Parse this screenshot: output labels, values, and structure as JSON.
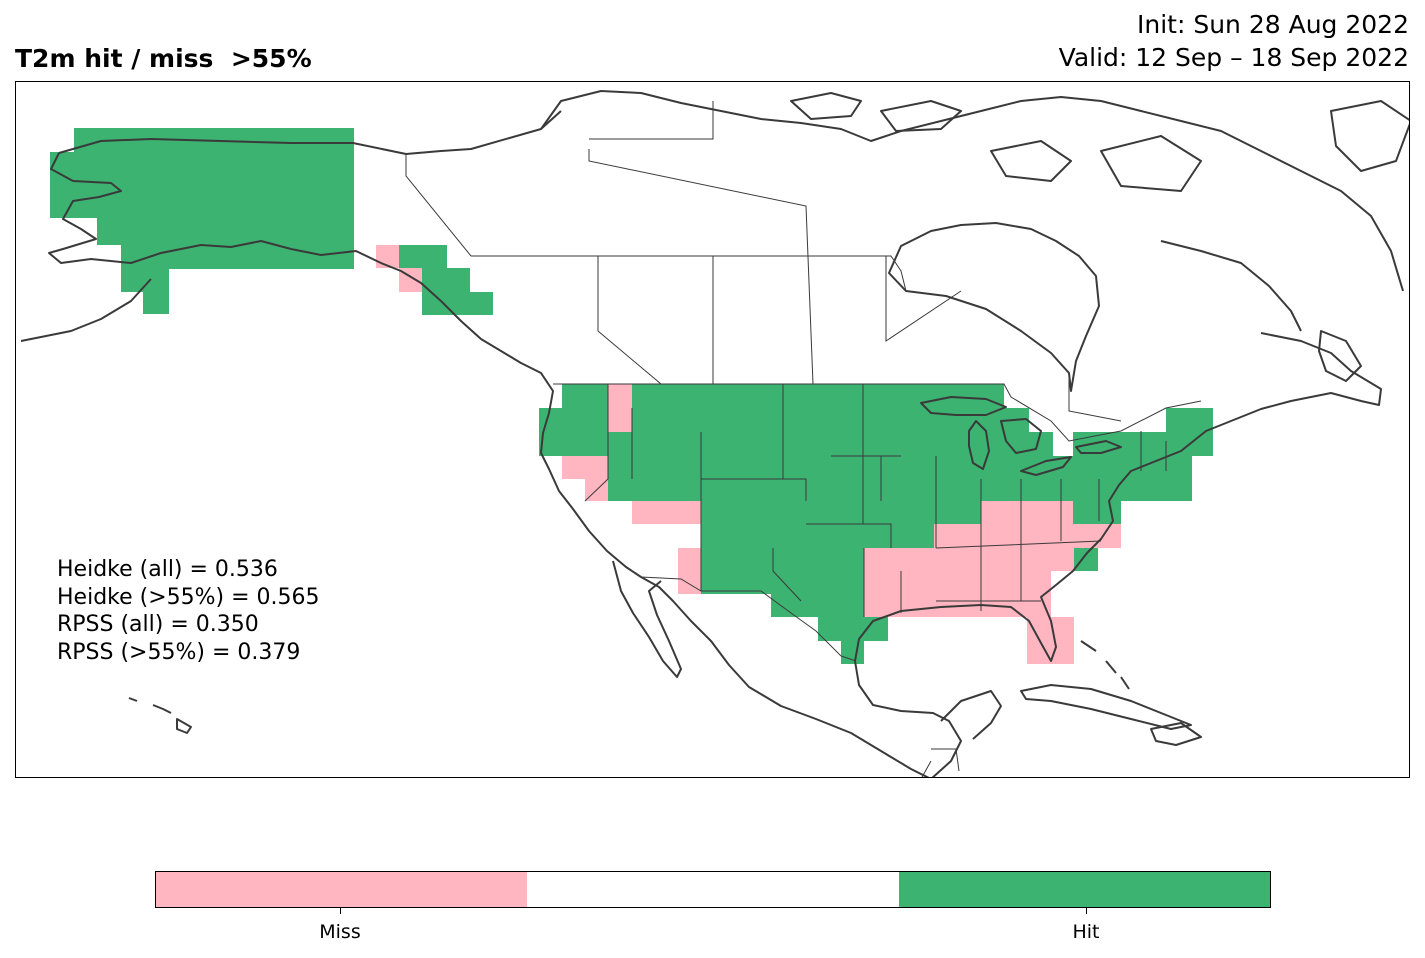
{
  "title": "T2m hit / miss  >55%",
  "init": "Init: Sun 28 Aug 2022",
  "valid": "Valid: 12 Sep – 18 Sep 2022",
  "scores": [
    "Heidke (all) = 0.536",
    "Heidke (>55%) = 0.565",
    "RPSS (all) = 0.350",
    "RPSS (>55%) = 0.379"
  ],
  "colors": {
    "miss": "#ffb6c1",
    "neutral": "#ffffff",
    "hit": "#3cb371",
    "coast": "#3a3a3a",
    "border": "#000000"
  },
  "colorbar": {
    "segments": [
      "miss",
      "neutral",
      "hit"
    ],
    "labels": [
      "Miss",
      "Hit"
    ]
  }
}
